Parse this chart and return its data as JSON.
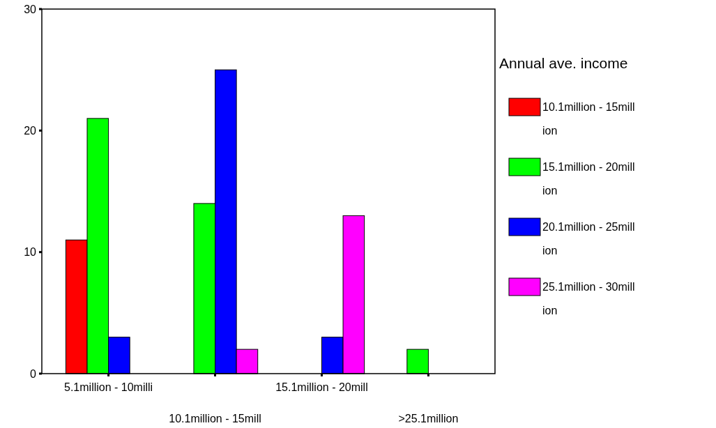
{
  "chart_data": {
    "type": "bar",
    "legend_title": "Annual ave. income",
    "categories": [
      "5.1million - 10milli",
      "10.1million - 15mill",
      "15.1million - 20mill",
      ">25.1million"
    ],
    "series": [
      {
        "name": "10.1million - 15million",
        "color": "#ff0000",
        "values": [
          11,
          null,
          null,
          null
        ]
      },
      {
        "name": "15.1million - 20million",
        "color": "#00ff00",
        "values": [
          21,
          14,
          null,
          2
        ]
      },
      {
        "name": "20.1million - 25million",
        "color": "#0000ff",
        "values": [
          3,
          25,
          3,
          null
        ]
      },
      {
        "name": "25.1million - 30million",
        "color": "#ff00ff",
        "values": [
          null,
          2,
          13,
          null
        ]
      }
    ],
    "ylim": [
      0,
      30
    ],
    "yticks": [
      0,
      10,
      20,
      30
    ],
    "grid": false,
    "legend": "right"
  }
}
